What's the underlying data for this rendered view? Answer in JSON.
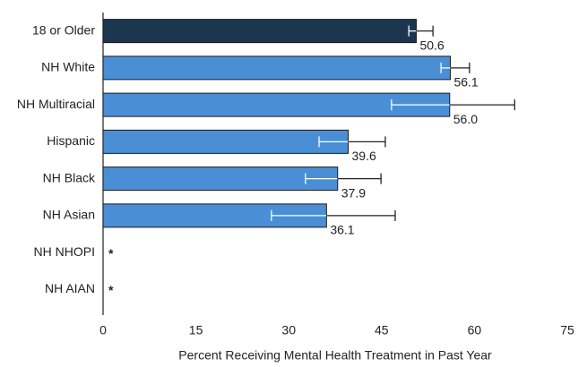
{
  "chart_data": {
    "type": "hbar",
    "x_label": "Percent Receiving Mental Health Treatment in Past Year",
    "categories": [
      "18 or Older",
      "NH White",
      "NH Multiracial",
      "Hispanic",
      "NH Black",
      "NH Asian",
      "NH NHOPI",
      "NH AIAN"
    ],
    "values": [
      50.6,
      56.1,
      56.0,
      39.6,
      37.9,
      36.1,
      null,
      null
    ],
    "value_labels": [
      "50.6",
      "56.1",
      "56.0",
      "39.6",
      "37.9",
      "36.1",
      "*",
      "*"
    ],
    "error_low": [
      49.4,
      54.6,
      46.6,
      34.9,
      32.7,
      27.2,
      null,
      null
    ],
    "error_high": [
      53.3,
      59.2,
      66.5,
      45.6,
      44.9,
      47.2,
      null,
      null
    ],
    "colors": [
      "#1d3650",
      "#4a8fd6",
      "#4a8fd6",
      "#4a8fd6",
      "#4a8fd6",
      "#4a8fd6",
      "#4a8fd6",
      "#4a8fd6"
    ],
    "xlim": [
      0,
      75
    ],
    "xticks": [
      0,
      15,
      30,
      45,
      60,
      75
    ],
    "grid": false
  }
}
